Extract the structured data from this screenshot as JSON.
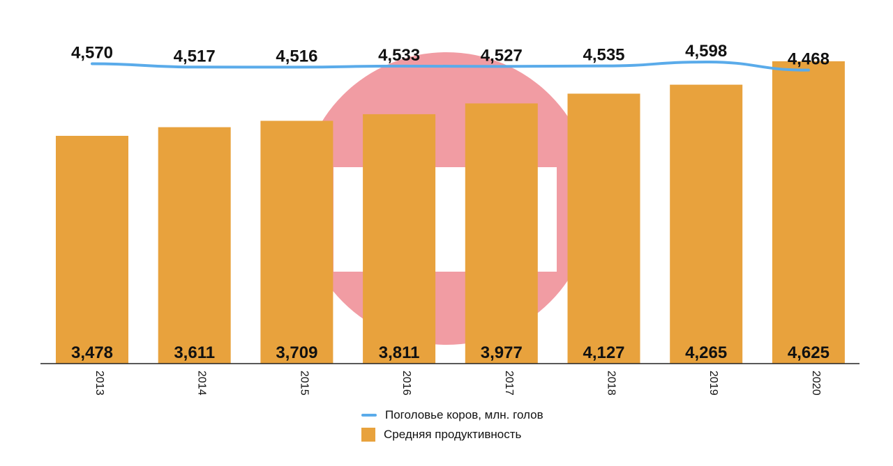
{
  "chart_data": {
    "type": "bar",
    "categories": [
      "2013",
      "2014",
      "2015",
      "2016",
      "2017",
      "2018",
      "2019",
      "2020"
    ],
    "series": [
      {
        "name": "Средняя продуктивность",
        "type": "bar",
        "color": "#e8a23d",
        "values": [
          3.478,
          3.611,
          3.709,
          3.811,
          3.977,
          4.127,
          4.265,
          4.625
        ],
        "labels": [
          "3,478",
          "3,611",
          "3,709",
          "3,811",
          "3,977",
          "4,127",
          "4,265",
          "4,625"
        ]
      },
      {
        "name": "Поголовье коров, млн. голов",
        "type": "line",
        "color": "#5aabea",
        "values": [
          4.57,
          4.517,
          4.516,
          4.533,
          4.527,
          4.535,
          4.598,
          4.468
        ],
        "labels": [
          "4,570",
          "4,517",
          "4,516",
          "4,533",
          "4,527",
          "4,535",
          "4,598",
          "4,468"
        ]
      }
    ],
    "legend_position": "bottom",
    "grid": false,
    "watermark_color": "#f19ca3"
  }
}
